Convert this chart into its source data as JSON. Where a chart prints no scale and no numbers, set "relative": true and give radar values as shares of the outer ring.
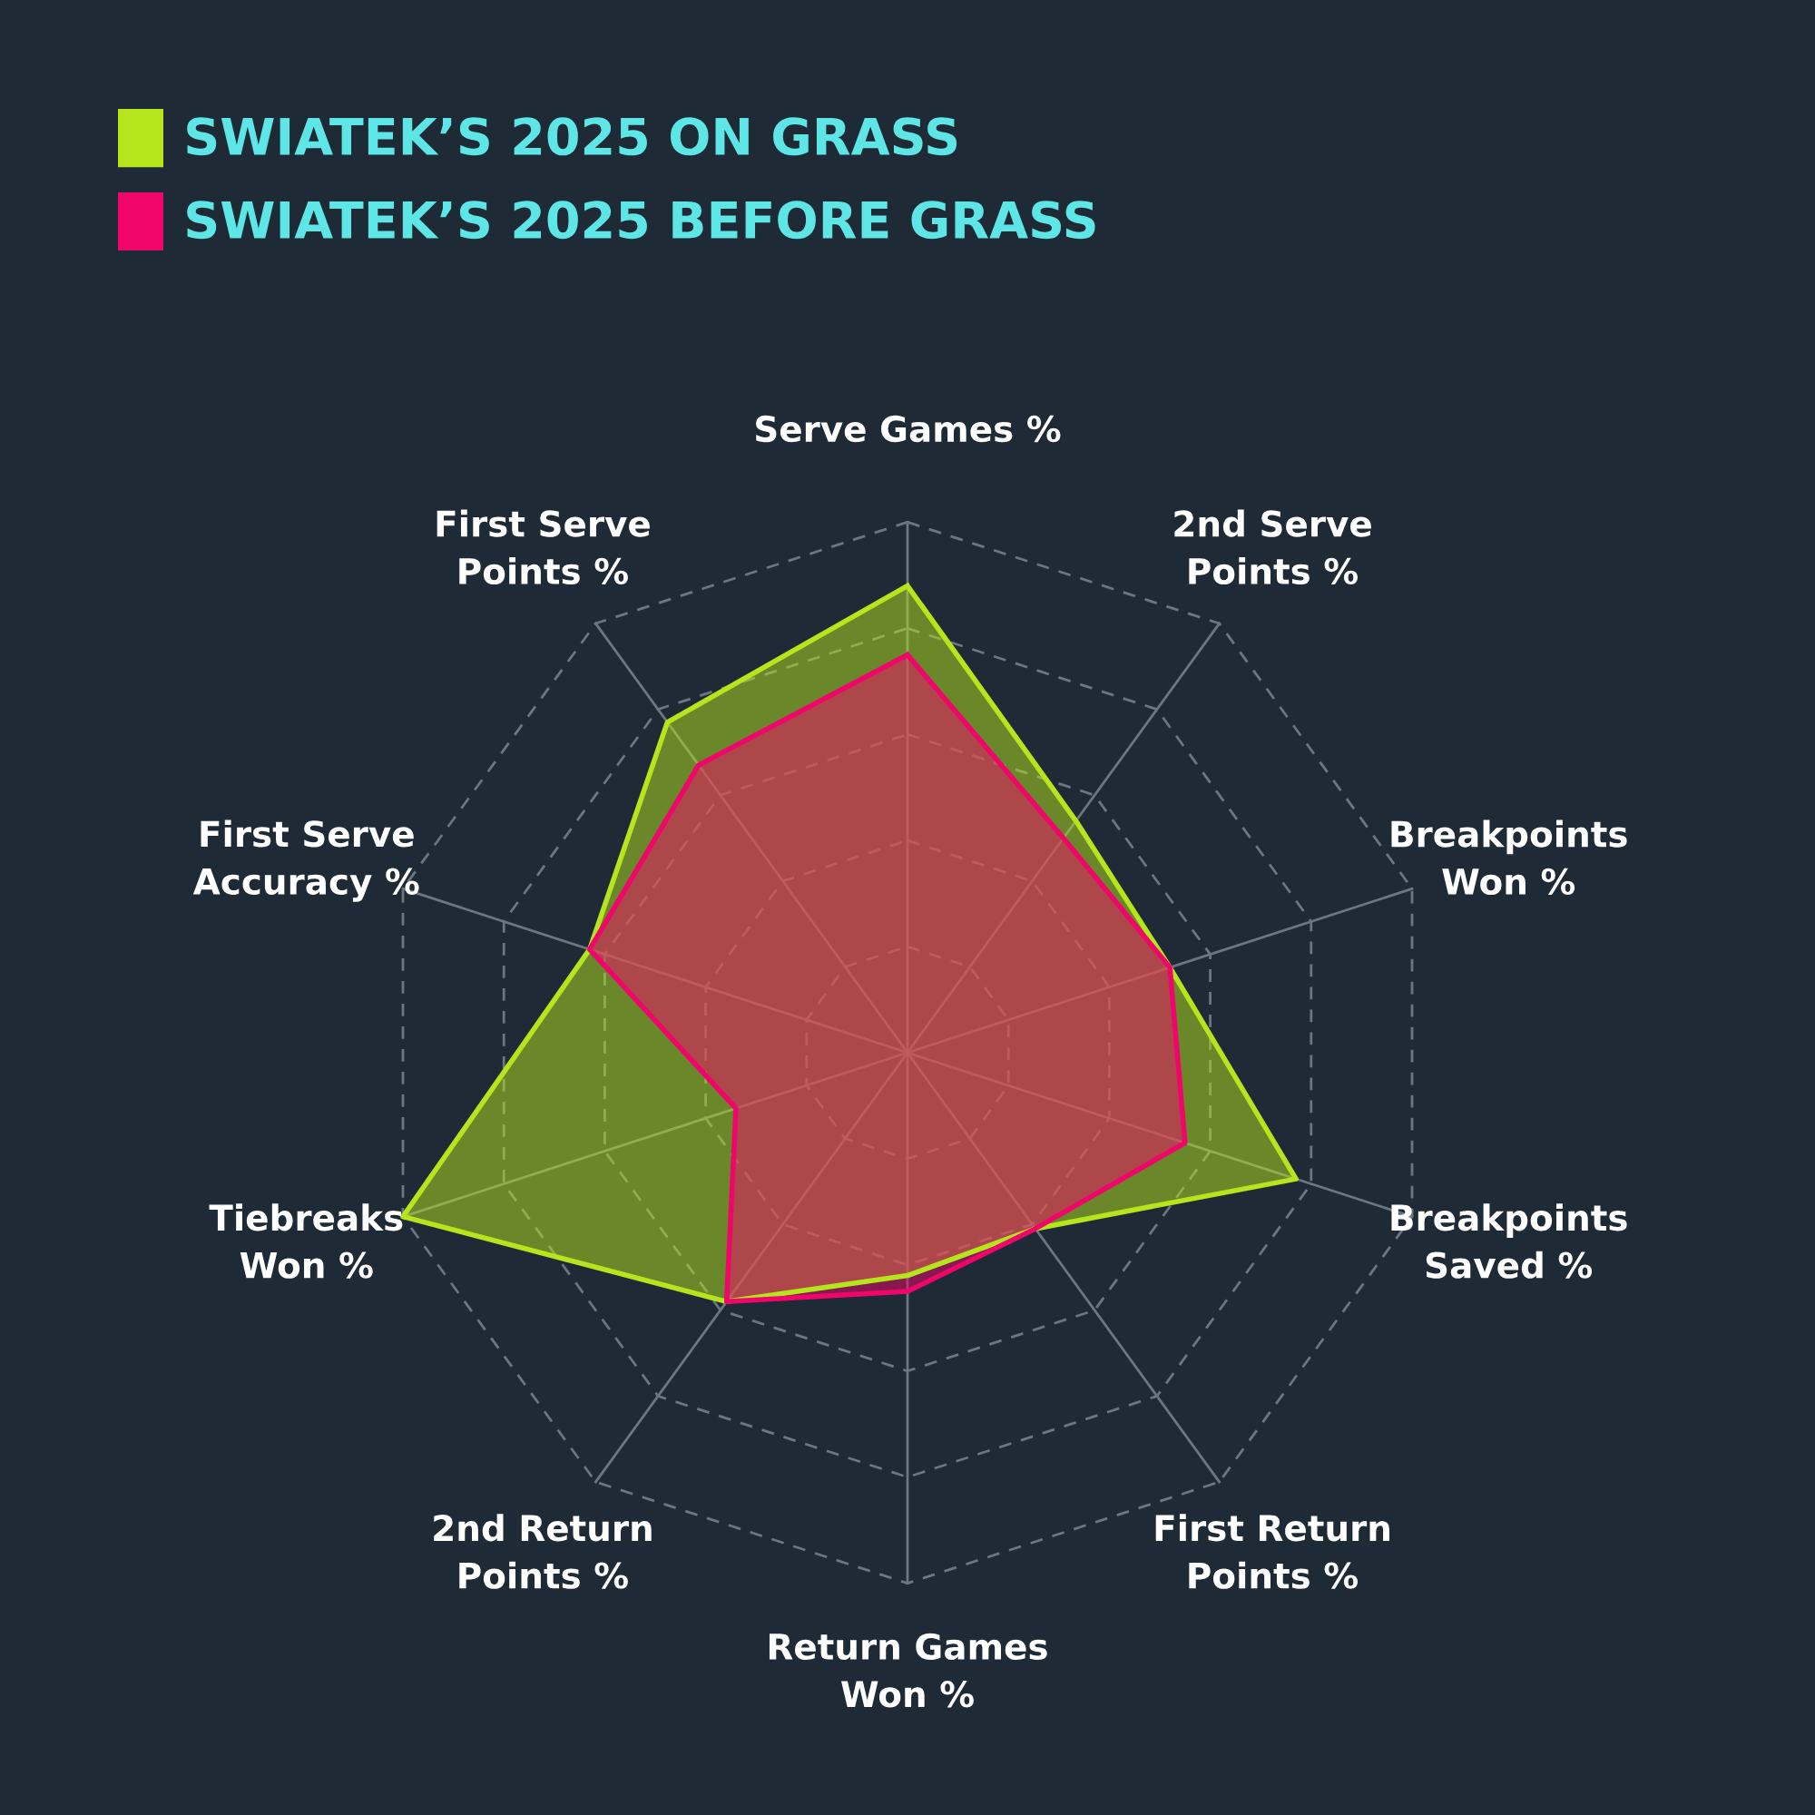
{
  "chart_data": {
    "type": "radar",
    "relative": true,
    "grid": true,
    "legend": "top left",
    "marker": "none",
    "categories": [
      "Serve Games %",
      "2nd Serve\nPoints %",
      "Breakpoints\nWon %",
      "Breakpoints\nSaved %",
      "First Return\nPoints %",
      "Return Games\nWon %",
      "2nd Return\nPoints %",
      "Tiebreaks\nWon %",
      "First Serve\nAccuracy %",
      "First Serve\nPoints %"
    ],
    "series": [
      {
        "name": "SWIATEK’S 2025 ON GRASS",
        "color": "#b5e61d",
        "values": [
          0.88,
          0.54,
          0.52,
          0.77,
          0.41,
          0.42,
          0.58,
          1.0,
          0.63,
          0.77
        ]
      },
      {
        "name": "SWIATEK’S 2025 BEFORE GRASS",
        "color": "#f0066b",
        "values": [
          0.75,
          0.5,
          0.52,
          0.55,
          0.41,
          0.45,
          0.58,
          0.34,
          0.63,
          0.67
        ]
      }
    ]
  }
}
